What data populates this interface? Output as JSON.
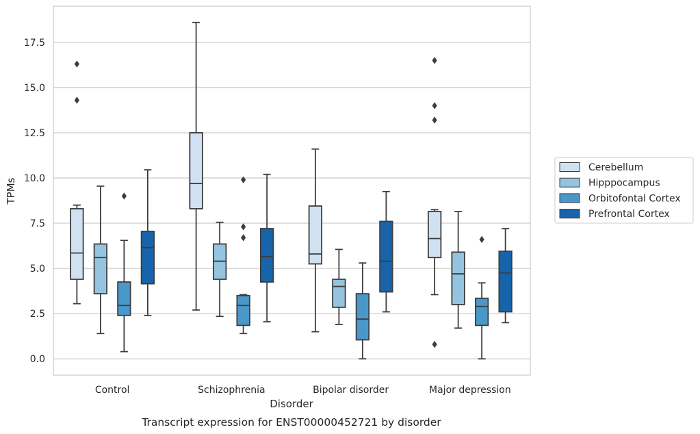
{
  "chart_data": {
    "type": "box",
    "title": "",
    "caption": "Transcript expression for ENST00000452721 by disorder",
    "xlabel": "Disorder",
    "ylabel": "TPMs",
    "ylim": [
      -0.9,
      19.5
    ],
    "yticks": [
      "0.0",
      "2.5",
      "5.0",
      "7.5",
      "10.0",
      "12.5",
      "15.0",
      "17.5"
    ],
    "grid": "horizontal",
    "legend_position": "right",
    "categories": [
      "Control",
      "Schizophrenia",
      "Bipolar disorder",
      "Major depression"
    ],
    "series": [
      {
        "name": "Cerebellum",
        "color": "#d0e1f2",
        "boxes": [
          {
            "whisker_low": 3.05,
            "q1": 4.4,
            "median": 5.85,
            "q3": 8.3,
            "whisker_high": 8.5,
            "outliers": [
              14.3,
              16.3
            ]
          },
          {
            "whisker_low": 2.7,
            "q1": 8.3,
            "median": 9.7,
            "q3": 12.5,
            "whisker_high": 18.6,
            "outliers": []
          },
          {
            "whisker_low": 1.5,
            "q1": 5.25,
            "median": 5.8,
            "q3": 8.45,
            "whisker_high": 11.6,
            "outliers": []
          },
          {
            "whisker_low": 3.55,
            "q1": 5.6,
            "median": 6.65,
            "q3": 8.15,
            "whisker_high": 8.25,
            "outliers": [
              0.8,
              13.2,
              14.0,
              16.5
            ]
          }
        ]
      },
      {
        "name": "Hipppocampus",
        "color": "#94c4df",
        "boxes": [
          {
            "whisker_low": 1.4,
            "q1": 3.6,
            "median": 5.6,
            "q3": 6.35,
            "whisker_high": 9.55,
            "outliers": []
          },
          {
            "whisker_low": 2.35,
            "q1": 4.4,
            "median": 5.4,
            "q3": 6.35,
            "whisker_high": 7.55,
            "outliers": []
          },
          {
            "whisker_low": 1.9,
            "q1": 2.85,
            "median": 4.0,
            "q3": 4.4,
            "whisker_high": 6.05,
            "outliers": []
          },
          {
            "whisker_low": 1.7,
            "q1": 3.0,
            "median": 4.7,
            "q3": 5.9,
            "whisker_high": 8.15,
            "outliers": []
          }
        ]
      },
      {
        "name": "Orbitofontal Cortex",
        "color": "#4a98c9",
        "boxes": [
          {
            "whisker_low": 0.4,
            "q1": 2.4,
            "median": 2.95,
            "q3": 4.25,
            "whisker_high": 6.55,
            "outliers": [
              9.0
            ]
          },
          {
            "whisker_low": 1.4,
            "q1": 1.85,
            "median": 2.95,
            "q3": 3.5,
            "whisker_high": 3.55,
            "outliers": [
              6.7,
              7.3,
              9.9
            ]
          },
          {
            "whisker_low": 0.0,
            "q1": 1.05,
            "median": 2.2,
            "q3": 3.6,
            "whisker_high": 5.3,
            "outliers": []
          },
          {
            "whisker_low": 0.0,
            "q1": 1.85,
            "median": 2.9,
            "q3": 3.35,
            "whisker_high": 4.2,
            "outliers": [
              6.6
            ]
          }
        ]
      },
      {
        "name": "Prefrontal Cortex",
        "color": "#1764ab",
        "boxes": [
          {
            "whisker_low": 2.4,
            "q1": 4.15,
            "median": 6.15,
            "q3": 7.05,
            "whisker_high": 10.45,
            "outliers": []
          },
          {
            "whisker_low": 2.05,
            "q1": 4.25,
            "median": 5.65,
            "q3": 7.2,
            "whisker_high": 10.2,
            "outliers": []
          },
          {
            "whisker_low": 2.6,
            "q1": 3.7,
            "median": 5.4,
            "q3": 7.6,
            "whisker_high": 9.25,
            "outliers": []
          },
          {
            "whisker_low": 2.0,
            "q1": 2.6,
            "median": 4.75,
            "q3": 5.95,
            "whisker_high": 7.2,
            "outliers": []
          }
        ]
      }
    ]
  }
}
